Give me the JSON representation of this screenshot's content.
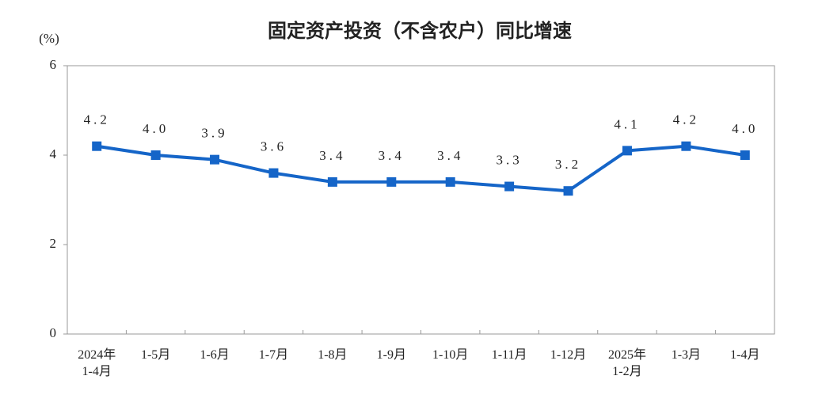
{
  "chart_data": {
    "type": "line",
    "title": "固定资产投资（不含农户）同比增速",
    "y_label": "(%)",
    "categories": [
      "2024年\n1-4月",
      "1-5月",
      "1-6月",
      "1-7月",
      "1-8月",
      "1-9月",
      "1-10月",
      "1-11月",
      "1-12月",
      "2025年\n1-2月",
      "1-3月",
      "1-4月"
    ],
    "values": [
      4.2,
      4.0,
      3.9,
      3.6,
      3.4,
      3.4,
      3.4,
      3.3,
      3.2,
      4.1,
      4.2,
      4.0
    ],
    "value_labels": [
      "4.2",
      "4.0",
      "3.9",
      "3.6",
      "3.4",
      "3.4",
      "3.4",
      "3.3",
      "3.2",
      "4.1",
      "4.2",
      "4.0"
    ],
    "color": "#1565c8",
    "ylim": [
      0,
      6
    ],
    "yticks": [
      0,
      2,
      4,
      6
    ],
    "grid": false
  }
}
